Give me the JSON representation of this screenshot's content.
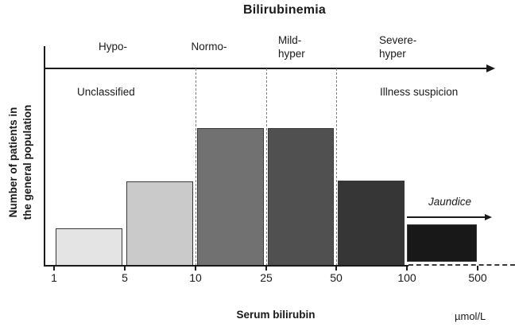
{
  "chart_data": {
    "type": "bar",
    "title": "Bilirubinemia",
    "xlabel": "Serum bilirubin",
    "x_unit": "µmol/L",
    "ylabel": "Number of patients in\nthe general population",
    "x_ticks": [
      "1",
      "5",
      "10",
      "25",
      "50",
      "100",
      "500"
    ],
    "x_scale": "categorical-log-like",
    "grid": "off",
    "bar_stroke": "#3a3a3a",
    "bars": [
      {
        "from": "1",
        "to": "5",
        "height_pct": 27,
        "color": "#e4e4e4"
      },
      {
        "from": "5",
        "to": "10",
        "height_pct": 61,
        "color": "#cacaca"
      },
      {
        "from": "10",
        "to": "25",
        "height_pct": 100,
        "color": "#717171"
      },
      {
        "from": "25",
        "to": "50",
        "height_pct": 100,
        "color": "#505050"
      },
      {
        "from": "50",
        "to": "100",
        "height_pct": 62,
        "color": "#363636"
      },
      {
        "from": "100",
        "to": "500",
        "height_pct": 27,
        "color": "#181818",
        "raised": true
      }
    ],
    "dashed_boundaries": [
      "10",
      "25",
      "50"
    ],
    "zones": [
      {
        "label": "Hypo-"
      },
      {
        "label": "Normo-"
      },
      {
        "label": "Mild-\nhyper"
      },
      {
        "label": "Severe-\nhyper"
      }
    ],
    "annotations": {
      "left_region": "Unclassified",
      "right_region": "Illness suspicion",
      "jaundice": "Jaundice"
    }
  }
}
